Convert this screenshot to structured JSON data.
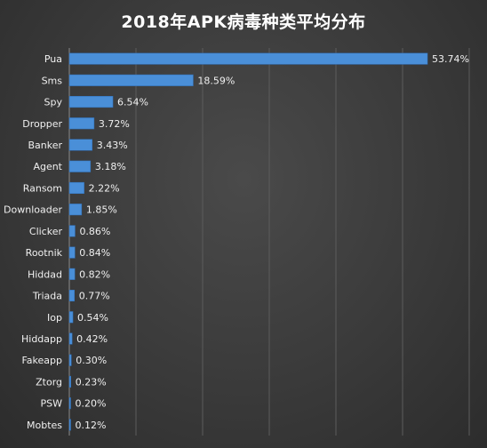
{
  "chart_data": {
    "type": "bar",
    "orientation": "horizontal",
    "title": "2018年APK病毒种类平均分布",
    "xlabel": "",
    "ylabel": "",
    "xlim": [
      0,
      60
    ],
    "grid": true,
    "legend": "none",
    "categories": [
      "Pua",
      "Sms",
      "Spy",
      "Dropper",
      "Banker",
      "Agent",
      "Ransom",
      "Downloader",
      "Clicker",
      "Rootnik",
      "Hiddad",
      "Triada",
      "Iop",
      "Hiddapp",
      "Fakeapp",
      "Ztorg",
      "PSW",
      "Mobtes"
    ],
    "values": [
      53.74,
      18.59,
      6.54,
      3.72,
      3.43,
      3.18,
      2.22,
      1.85,
      0.86,
      0.84,
      0.82,
      0.77,
      0.54,
      0.42,
      0.3,
      0.23,
      0.2,
      0.12
    ],
    "value_labels": [
      "53.74%",
      "18.59%",
      "6.54%",
      "3.72%",
      "3.43%",
      "3.18%",
      "2.22%",
      "1.85%",
      "0.86%",
      "0.84%",
      "0.82%",
      "0.77%",
      "0.54%",
      "0.42%",
      "0.30%",
      "0.23%",
      "0.20%",
      "0.12%"
    ],
    "colors": {
      "bar": "#4a8fd8",
      "bar_edge": "#2f6fb8",
      "text": "#f0f0f0",
      "title": "#ffffff",
      "grid": "#5c5c5c"
    }
  }
}
